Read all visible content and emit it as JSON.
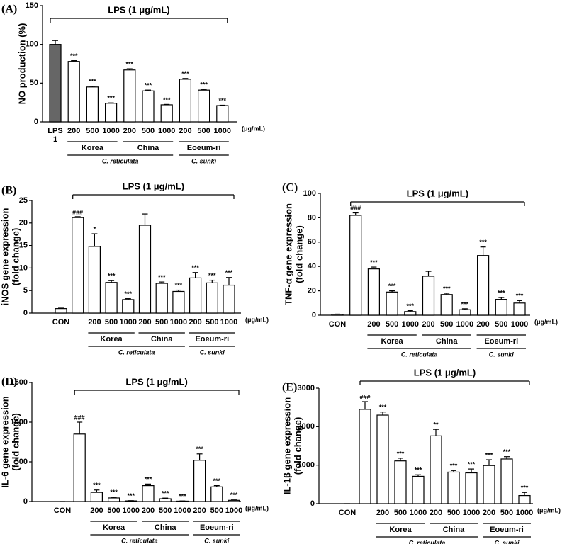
{
  "chart_data": [
    {
      "type": "bar",
      "panel": "(A)",
      "title": "LPS (1 μg/mL)",
      "unit": "(μg/mL)",
      "y_label": [
        "NO production (%)"
      ],
      "categories": [
        "LPS 1",
        "200",
        "500",
        "1000",
        "200",
        "500",
        "1000",
        "200",
        "500",
        "1000"
      ],
      "values": [
        100,
        78,
        45,
        24,
        67,
        40,
        22,
        55,
        41,
        21
      ],
      "errors": [
        5,
        1,
        1,
        0.5,
        1.5,
        1,
        0.5,
        1,
        1,
        0.5
      ],
      "value_labels": [
        null,
        "***",
        "***",
        "***",
        "***",
        "***",
        "***",
        "***",
        "***",
        "***"
      ],
      "colors": [
        "#666666",
        "#ffffff",
        "#ffffff",
        "#ffffff",
        "#ffffff",
        "#ffffff",
        "#ffffff",
        "#ffffff",
        "#ffffff",
        "#ffffff"
      ],
      "groups": [
        "Korea",
        "China",
        "Eoeum-ri"
      ],
      "supergroups": [
        "C. reticulata",
        "C. sunki"
      ],
      "ylim": [
        0,
        150
      ],
      "yticks": [
        0,
        50,
        100,
        150
      ]
    },
    {
      "type": "bar",
      "panel": "(B)",
      "title": "LPS (1 μg/mL)",
      "unit": "(μg/mL)",
      "y_label": [
        "iNOS gene expression",
        "(fold change)"
      ],
      "categories": [
        "CON",
        null,
        "200",
        "500",
        "1000",
        "200",
        "500",
        "1000",
        "200",
        "500",
        "1000"
      ],
      "values": [
        1,
        21.2,
        14.8,
        6.8,
        3.0,
        19.5,
        6.6,
        4.8,
        7.8,
        6.7,
        6.2
      ],
      "errors": [
        0.1,
        0.2,
        2.8,
        0.4,
        0.2,
        2.5,
        0.3,
        0.3,
        1.2,
        0.6,
        1.7
      ],
      "value_labels": [
        null,
        "###",
        "*",
        "***",
        "***",
        null,
        "***",
        "***",
        "***",
        "***",
        "***"
      ],
      "groups": [
        "Korea",
        "China",
        "Eoeum-ri"
      ],
      "supergroups": [
        "C. reticulata",
        "C. sunki"
      ],
      "ylim": [
        0,
        25
      ],
      "yticks": [
        0,
        5,
        10,
        15,
        20,
        25
      ]
    },
    {
      "type": "bar",
      "panel": "(C)",
      "title": "LPS (1 μg/mL)",
      "unit": "(μg/mL)",
      "y_label": [
        "TNF-α gene expression",
        "(fold change)"
      ],
      "categories": [
        "CON",
        null,
        "200",
        "500",
        "1000",
        "200",
        "500",
        "1000",
        "200",
        "500",
        "1000"
      ],
      "values": [
        0.8,
        82,
        38,
        19,
        3,
        32,
        17,
        4.5,
        49,
        13,
        10
      ],
      "errors": [
        0.1,
        2,
        1.5,
        1,
        0.8,
        4,
        1,
        0.8,
        7,
        1.5,
        2
      ],
      "value_labels": [
        null,
        "###",
        "***",
        "***",
        "***",
        null,
        "***",
        "***",
        "***",
        "***",
        "***"
      ],
      "groups": [
        "Korea",
        "China",
        "Eoeum-ri"
      ],
      "supergroups": [
        "C. reticulata",
        "C. sunki"
      ],
      "ylim": [
        0,
        100
      ],
      "yticks": [
        0,
        20,
        40,
        60,
        80,
        100
      ]
    },
    {
      "type": "bar",
      "panel": "(D)",
      "title": "LPS (1 μg/mL)",
      "unit": "(μg/mL)",
      "y_label": [
        "IL-6 gene expression",
        "(fold change)"
      ],
      "categories": [
        "CON",
        null,
        "200",
        "500",
        "1000",
        "200",
        "500",
        "1000",
        "200",
        "500",
        "1000"
      ],
      "values": [
        0,
        850,
        115,
        45,
        8,
        200,
        35,
        5,
        520,
        185,
        15
      ],
      "errors": [
        0,
        150,
        30,
        10,
        3,
        20,
        8,
        2,
        80,
        15,
        5
      ],
      "value_labels": [
        null,
        "###",
        "***",
        "***",
        "***",
        "***",
        "***",
        "***",
        "***",
        "***",
        "***"
      ],
      "groups": [
        "Korea",
        "China",
        "Eoeum-ri"
      ],
      "supergroups": [
        "C. reticulata",
        "C. sunki"
      ],
      "ylim": [
        0,
        1500
      ],
      "yticks": [
        0,
        500,
        1000,
        1500
      ]
    },
    {
      "type": "bar",
      "panel": "(E)",
      "title": "LPS (1 μg/mL)",
      "unit": "(μg/mL)",
      "y_label": [
        "IL-1β gene expression",
        "(fold change)"
      ],
      "categories": [
        "CON",
        null,
        "200",
        "500",
        "1000",
        "200",
        "500",
        "1000",
        "200",
        "500",
        "1000"
      ],
      "values": [
        0,
        2450,
        2300,
        1110,
        710,
        1760,
        820,
        800,
        990,
        1160,
        210
      ],
      "errors": [
        0,
        200,
        80,
        70,
        40,
        170,
        40,
        100,
        150,
        60,
        80
      ],
      "value_labels": [
        null,
        "###",
        "***",
        "***",
        "***",
        "**",
        "***",
        "***",
        "***",
        "***",
        "***"
      ],
      "groups": [
        "Korea",
        "China",
        "Eoeum-ri"
      ],
      "supergroups": [
        "C. reticulata",
        "C. sunki"
      ],
      "ylim": [
        0,
        3000
      ],
      "yticks": [
        0,
        1000,
        2000,
        3000
      ]
    }
  ]
}
